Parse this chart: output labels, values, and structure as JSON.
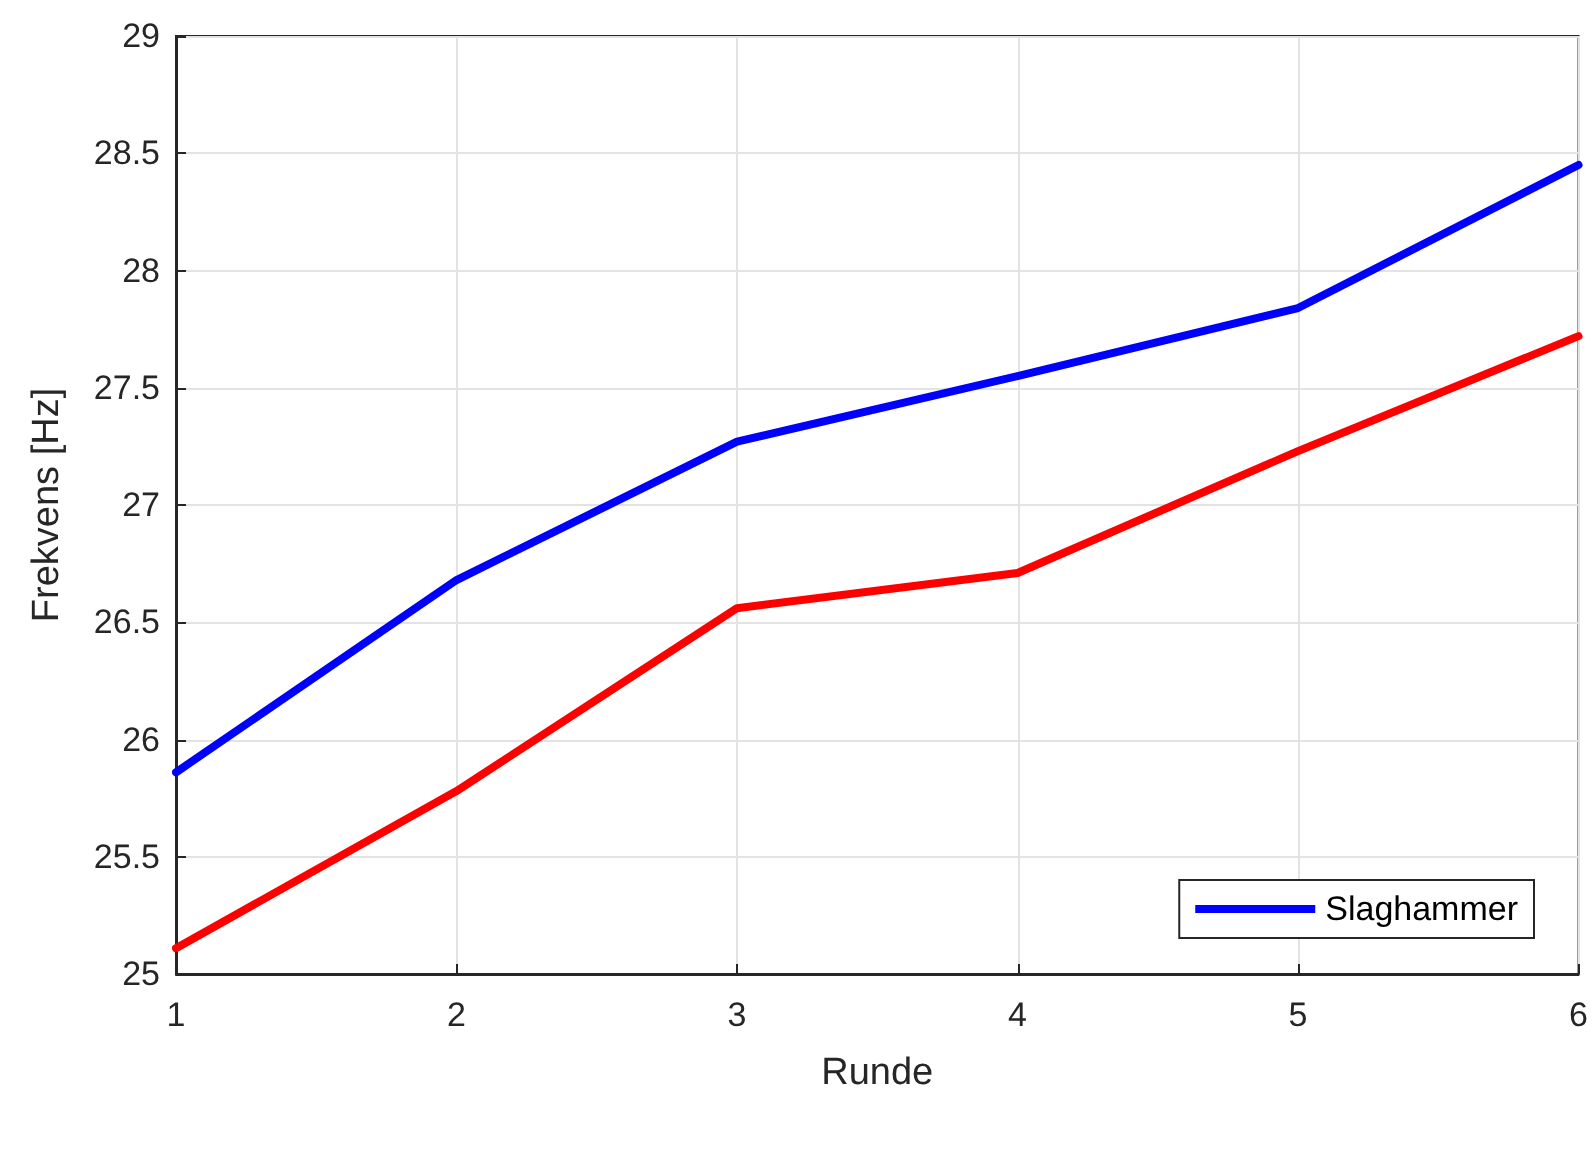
{
  "chart_data": {
    "type": "line",
    "xlabel": "Runde",
    "ylabel": "Frekvens [Hz]",
    "x": [
      1,
      2,
      3,
      4,
      5,
      6
    ],
    "series": [
      {
        "name": "Slaghammer",
        "color": "#0000ff",
        "values": [
          25.86,
          26.68,
          27.27,
          27.55,
          27.84,
          28.45
        ]
      },
      {
        "color": "#ff0000",
        "values": [
          25.11,
          25.78,
          26.56,
          26.71,
          27.23,
          27.72
        ]
      }
    ],
    "xlim": [
      1,
      6
    ],
    "xticks": [
      1,
      2,
      3,
      4,
      5,
      6
    ],
    "ylim": [
      25,
      29
    ],
    "yticks": [
      25,
      25.5,
      26,
      26.5,
      27,
      27.5,
      28,
      28.5,
      29
    ],
    "grid": true,
    "legend": "bottom right",
    "marker": "none",
    "line_style": "solid"
  }
}
